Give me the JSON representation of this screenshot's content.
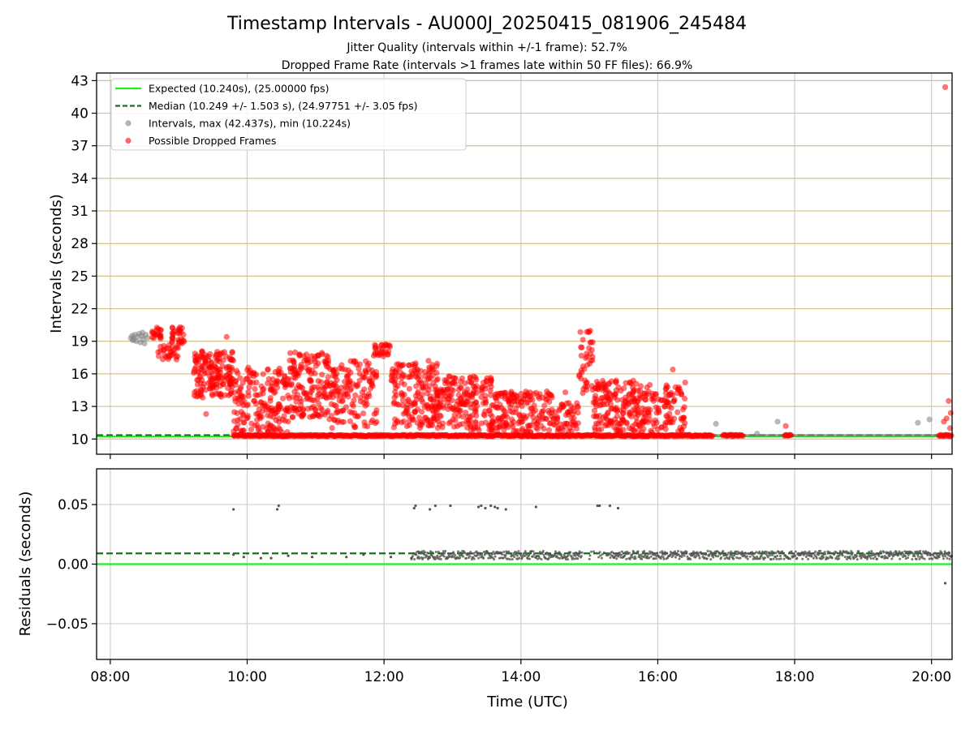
{
  "title": "Timestamp Intervals - AU000J_20250415_081906_245484",
  "subtitle_1": "Jitter Quality (intervals within +/-1 frame): 52.7%",
  "subtitle_2": "Dropped Frame Rate (intervals >1 frames late within 50 FF files): 66.9%",
  "chart_data": [
    {
      "type": "scatter",
      "ylabel": "Intervals (seconds)",
      "xlim": [
        7.8,
        20.3
      ],
      "ylim": [
        8.6,
        43.7
      ],
      "yticks": [
        10,
        13,
        16,
        19,
        22,
        25,
        28,
        31,
        34,
        37,
        40,
        43
      ],
      "ytick_labels": [
        "10",
        "13",
        "16",
        "19",
        "22",
        "25",
        "28",
        "31",
        "34",
        "37",
        "40",
        "43"
      ],
      "xticks": [
        8,
        10,
        12,
        14,
        16,
        18,
        20
      ],
      "grid": "y-ticks tan, x-ticks gray",
      "legend_position": "upper-left",
      "lines": {
        "expected": {
          "name": "Expected (10.240s), (25.00000 fps)",
          "y": 10.24,
          "color": "#22ee22",
          "style": "solid"
        },
        "median": {
          "name": "Median (10.249 +/- 1.503 s), (24.97751 +/- 3.05 fps)",
          "y": 10.249,
          "color": "#117711",
          "style": "dashed"
        }
      },
      "series": [
        {
          "name": "Intervals, max (42.437s), min (10.224s)",
          "color": "#808080",
          "points": [
            [
              8.3,
              19.3
            ],
            [
              8.32,
              19.5
            ],
            [
              8.34,
              19.2
            ],
            [
              8.36,
              19.6
            ],
            [
              8.38,
              19.0
            ],
            [
              8.4,
              19.4
            ],
            [
              8.42,
              19.7
            ],
            [
              8.44,
              18.9
            ],
            [
              8.46,
              19.5
            ],
            [
              8.48,
              19.2
            ],
            [
              8.5,
              18.8
            ],
            [
              8.52,
              19.6
            ],
            [
              8.54,
              19.3
            ],
            [
              8.33,
              19.1
            ],
            [
              8.47,
              19.8
            ],
            [
              16.85,
              11.4
            ],
            [
              17.45,
              10.5
            ],
            [
              17.75,
              11.6
            ],
            [
              19.8,
              11.5
            ],
            [
              19.97,
              11.8
            ]
          ],
          "baseline_band": {
            "x_from": 16.8,
            "x_to": 20.3,
            "y_from": 10.22,
            "y_to": 10.45
          }
        },
        {
          "name": "Possible Dropped Frames",
          "color": "#ff0000",
          "clusters": [
            {
              "x": [
                8.6,
                8.75
              ],
              "y": [
                19.2,
                20.3
              ],
              "n": 20
            },
            {
              "x": [
                8.7,
                9.0
              ],
              "y": [
                17.3,
                18.8
              ],
              "n": 30
            },
            {
              "x": [
                8.9,
                9.1
              ],
              "y": [
                18.8,
                20.4
              ],
              "n": 30
            },
            {
              "x": [
                9.22,
                9.8
              ],
              "y": [
                13.8,
                18.2
              ],
              "n": 170
            },
            {
              "x": [
                9.8,
                10.6
              ],
              "y": [
                10.6,
                16.6
              ],
              "n": 190
            },
            {
              "x": [
                10.6,
                11.2
              ],
              "y": [
                12.0,
                18.0
              ],
              "n": 160
            },
            {
              "x": [
                11.2,
                11.9
              ],
              "y": [
                11.0,
                17.2
              ],
              "n": 150
            },
            {
              "x": [
                11.85,
                12.1
              ],
              "y": [
                17.6,
                18.7
              ],
              "n": 30
            },
            {
              "x": [
                12.1,
                12.8
              ],
              "y": [
                11.0,
                17.0
              ],
              "n": 190
            },
            {
              "x": [
                12.8,
                13.6
              ],
              "y": [
                10.8,
                15.8
              ],
              "n": 190
            },
            {
              "x": [
                13.6,
                14.5
              ],
              "y": [
                10.6,
                14.4
              ],
              "n": 170
            },
            {
              "x": [
                14.5,
                14.85
              ],
              "y": [
                10.6,
                13.4
              ],
              "n": 50
            },
            {
              "x": [
                14.85,
                15.05
              ],
              "y": [
                14.2,
                20.0
              ],
              "n": 40
            },
            {
              "x": [
                15.05,
                15.7
              ],
              "y": [
                10.6,
                15.4
              ],
              "n": 160
            },
            {
              "x": [
                15.7,
                16.4
              ],
              "y": [
                10.6,
                15.0
              ],
              "n": 130
            }
          ],
          "points": [
            [
              20.2,
              42.4
            ],
            [
              20.25,
              13.5
            ],
            [
              20.28,
              12.4
            ],
            [
              20.22,
              11.9
            ],
            [
              20.18,
              11.6
            ],
            [
              20.27,
              11.0
            ],
            [
              9.7,
              19.4
            ],
            [
              12.65,
              17.2
            ],
            [
              14.65,
              14.3
            ],
            [
              16.22,
              16.4
            ],
            [
              16.4,
              15.2
            ],
            [
              17.87,
              11.2
            ],
            [
              9.4,
              12.3
            ],
            [
              14.4,
              14.2
            ],
            [
              14.1,
              14.0
            ],
            [
              13.9,
              14.1
            ]
          ],
          "baseline": {
            "x_from": 9.8,
            "x_to": 20.3,
            "y": 10.24,
            "gaps": [
              [
                16.8,
                16.95
              ],
              [
                17.25,
                17.85
              ],
              [
                17.95,
                20.1
              ]
            ]
          }
        }
      ]
    },
    {
      "type": "scatter",
      "xlabel": "Time (UTC)",
      "ylabel": "Residuals (seconds)",
      "xlim": [
        7.8,
        20.3
      ],
      "ylim": [
        -0.08,
        0.08
      ],
      "yticks": [
        -0.05,
        0.0,
        0.05
      ],
      "ytick_labels": [
        "−0.05",
        "0.00",
        "0.05"
      ],
      "xticks": [
        8,
        10,
        12,
        14,
        16,
        18,
        20
      ],
      "xtick_labels": [
        "08:00",
        "10:00",
        "12:00",
        "14:00",
        "16:00",
        "18:00",
        "20:00"
      ],
      "grid": "on",
      "lines": {
        "zero": {
          "y": 0.0,
          "color": "#22ee22",
          "style": "solid"
        },
        "median_offset": {
          "y": 0.009,
          "color": "#117711",
          "style": "dashed"
        }
      },
      "series": [
        {
          "name": "residuals",
          "color": "#555555",
          "points": [
            [
              9.8,
              0.046
            ],
            [
              10.44,
              0.046
            ],
            [
              10.46,
              0.049
            ],
            [
              12.44,
              0.047
            ],
            [
              12.46,
              0.049
            ],
            [
              12.67,
              0.046
            ],
            [
              12.75,
              0.049
            ],
            [
              12.97,
              0.049
            ],
            [
              13.38,
              0.048
            ],
            [
              13.42,
              0.049
            ],
            [
              13.48,
              0.047
            ],
            [
              13.56,
              0.049
            ],
            [
              13.62,
              0.048
            ],
            [
              13.66,
              0.047
            ],
            [
              13.78,
              0.046
            ],
            [
              14.22,
              0.048
            ],
            [
              15.12,
              0.049
            ],
            [
              15.15,
              0.049
            ],
            [
              15.3,
              0.049
            ],
            [
              15.42,
              0.047
            ],
            [
              20.2,
              -0.016
            ],
            [
              9.8,
              0.008
            ],
            [
              9.95,
              0.006
            ],
            [
              10.2,
              0.005
            ],
            [
              10.35,
              0.005
            ],
            [
              10.6,
              0.007
            ],
            [
              10.95,
              0.006
            ],
            [
              11.45,
              0.006
            ],
            [
              11.7,
              0.008
            ],
            [
              12.1,
              0.006
            ],
            [
              12.4,
              0.005
            ],
            [
              12.5,
              0.006
            ],
            [
              12.65,
              0.005
            ]
          ],
          "band": {
            "x_from": 12.4,
            "x_to": 20.3,
            "y_from": 0.004,
            "y_to": 0.011,
            "gap": [
              14.9,
              15.3
            ]
          }
        }
      ]
    }
  ]
}
